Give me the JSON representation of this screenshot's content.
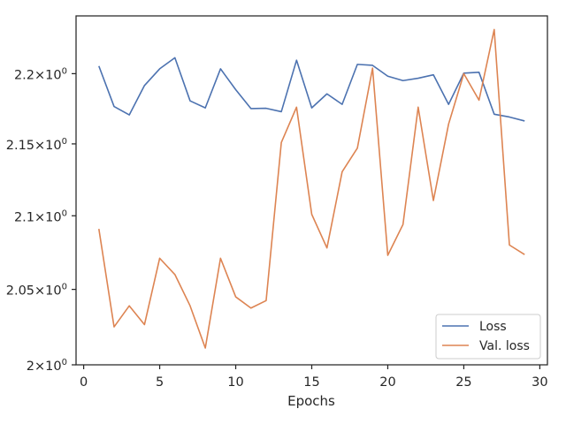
{
  "chart_data": {
    "type": "line",
    "xlabel": "Epochs",
    "ylabel": "",
    "xlim": [
      -0.5,
      30.5
    ],
    "ylim": [
      2.0,
      2.242
    ],
    "y_scale": "log",
    "grid": false,
    "legend_position": "lower-right",
    "x_ticks": [
      0,
      5,
      10,
      15,
      20,
      25,
      30
    ],
    "x_tick_labels": [
      "0",
      "5",
      "10",
      "15",
      "20",
      "25",
      "30"
    ],
    "y_ticks": [
      2.0,
      2.05,
      2.1,
      2.15,
      2.2
    ],
    "y_tick_labels": [
      {
        "base": "2",
        "sup": "0"
      },
      {
        "base": "2.05",
        "sup": "0"
      },
      {
        "base": "2.1",
        "sup": "0"
      },
      {
        "base": "2.15",
        "sup": "0"
      },
      {
        "base": "2.2",
        "sup": "0"
      }
    ],
    "x": [
      1,
      2,
      3,
      4,
      5,
      6,
      7,
      8,
      9,
      10,
      11,
      12,
      13,
      14,
      15,
      16,
      17,
      18,
      19,
      20,
      21,
      22,
      23,
      24,
      25,
      26,
      27,
      28,
      29
    ],
    "series": [
      {
        "name": "Loss",
        "color": "#4c72b0",
        "values": [
          2.2055,
          2.1765,
          2.1705,
          2.1915,
          2.2035,
          2.2115,
          2.1805,
          2.1755,
          2.2035,
          2.1885,
          2.175,
          2.1752,
          2.1728,
          2.2097,
          2.1755,
          2.1855,
          2.178,
          2.2067,
          2.206,
          2.1982,
          2.195,
          2.1967,
          2.1992,
          2.178,
          2.2004,
          2.201,
          2.171,
          2.169,
          2.1662
        ]
      },
      {
        "name": "Val. loss",
        "color": "#dd8452",
        "values": [
          2.091,
          2.025,
          2.039,
          2.0265,
          2.071,
          2.06,
          2.039,
          2.011,
          2.071,
          2.045,
          2.0375,
          2.0425,
          2.151,
          2.176,
          2.101,
          2.078,
          2.1305,
          2.147,
          2.204,
          2.073,
          2.094,
          2.176,
          2.1105,
          2.164,
          2.2,
          2.181,
          2.232,
          2.08,
          2.0735
        ]
      }
    ]
  }
}
